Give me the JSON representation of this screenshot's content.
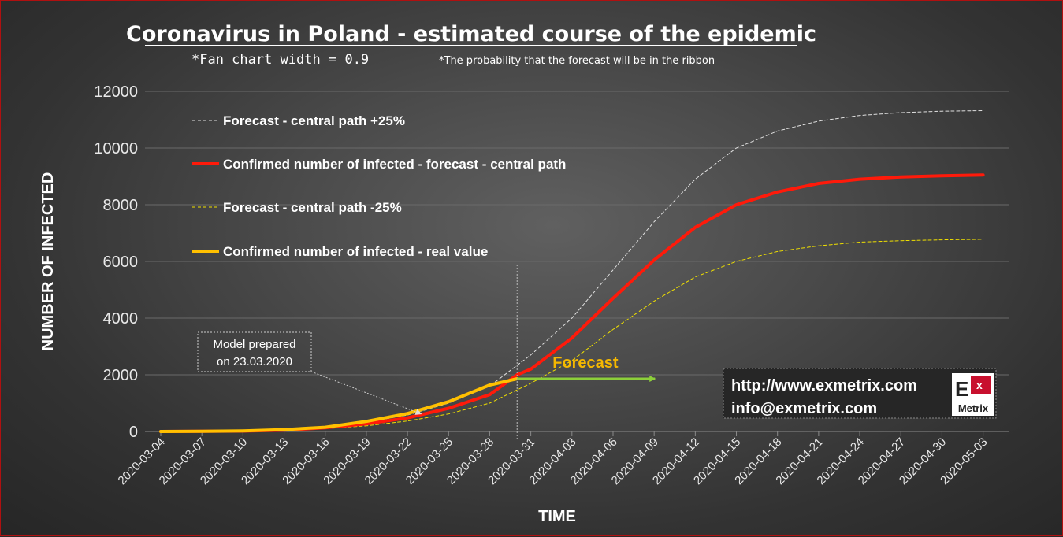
{
  "header": {
    "title": "Coronavirus  in Poland - estimated course of the epidemic",
    "fan_note": "*Fan chart width = 0.9",
    "prob_note": "*The probability that the forecast will be in the ribbon"
  },
  "annotations": {
    "model_line1": "Model prepared",
    "model_line2": "on 23.03.2020",
    "forecast": "Forecast",
    "url": "http://www.exmetrix.com",
    "email": "info@exmetrix.com",
    "logo_letter": "E",
    "logo_sup": "x",
    "logo_name": "Metrix"
  },
  "colors": {
    "plus25": "#e0e0e0",
    "central": "#ff1a0a",
    "minus25": "#f0e000",
    "real": "#ffc000",
    "arrow": "#8ccf3a",
    "logo_red": "#c8102e"
  },
  "chart_data": {
    "type": "line",
    "xlabel": "TIME",
    "ylabel": "NUMBER OF INFECTED",
    "ylim": [
      0,
      12000
    ],
    "yticks": [
      "0",
      "2000",
      "4000",
      "6000",
      "8000",
      "10000",
      "12000"
    ],
    "x_start": "2020-03-04",
    "x_end": "2020-05-04",
    "xticks": [
      "2020-03-04",
      "2020-03-07",
      "2020-03-10",
      "2020-03-13",
      "2020-03-16",
      "2020-03-19",
      "2020-03-22",
      "2020-03-25",
      "2020-03-28",
      "2020-03-31",
      "2020-04-03",
      "2020-04-06",
      "2020-04-09",
      "2020-04-12",
      "2020-04-15",
      "2020-04-18",
      "2020-04-21",
      "2020-04-24",
      "2020-04-27",
      "2020-04-30",
      "2020-05-03"
    ],
    "grid": true,
    "legend_position": "top-left",
    "forecast_start": "2020-03-30",
    "callout_target": "2020-03-23",
    "series": [
      {
        "name": "Forecast - central path +25%",
        "style": "dashed",
        "color_key": "plus25",
        "points": [
          [
            "2020-03-04",
            0
          ],
          [
            "2020-03-10",
            20
          ],
          [
            "2020-03-13",
            60
          ],
          [
            "2020-03-16",
            160
          ],
          [
            "2020-03-19",
            330
          ],
          [
            "2020-03-22",
            580
          ],
          [
            "2020-03-25",
            1000
          ],
          [
            "2020-03-28",
            1600
          ],
          [
            "2020-03-31",
            2700
          ],
          [
            "2020-04-03",
            4000
          ],
          [
            "2020-04-06",
            5700
          ],
          [
            "2020-04-09",
            7400
          ],
          [
            "2020-04-12",
            8900
          ],
          [
            "2020-04-15",
            10000
          ],
          [
            "2020-04-18",
            10600
          ],
          [
            "2020-04-21",
            10950
          ],
          [
            "2020-04-24",
            11150
          ],
          [
            "2020-04-27",
            11250
          ],
          [
            "2020-04-30",
            11300
          ],
          [
            "2020-05-03",
            11320
          ]
        ]
      },
      {
        "name": "Confirmed number of infected - forecast - central path",
        "style": "solid",
        "color_key": "central",
        "points": [
          [
            "2020-03-04",
            0
          ],
          [
            "2020-03-10",
            15
          ],
          [
            "2020-03-13",
            50
          ],
          [
            "2020-03-16",
            130
          ],
          [
            "2020-03-19",
            270
          ],
          [
            "2020-03-22",
            480
          ],
          [
            "2020-03-25",
            820
          ],
          [
            "2020-03-28",
            1300
          ],
          [
            "2020-03-30",
            2000
          ],
          [
            "2020-03-31",
            2200
          ],
          [
            "2020-04-03",
            3300
          ],
          [
            "2020-04-06",
            4700
          ],
          [
            "2020-04-09",
            6050
          ],
          [
            "2020-04-12",
            7200
          ],
          [
            "2020-04-15",
            8000
          ],
          [
            "2020-04-18",
            8450
          ],
          [
            "2020-04-21",
            8750
          ],
          [
            "2020-04-24",
            8900
          ],
          [
            "2020-04-27",
            8980
          ],
          [
            "2020-04-30",
            9020
          ],
          [
            "2020-05-03",
            9050
          ]
        ]
      },
      {
        "name": "Forecast - central path  -25%",
        "style": "dashed",
        "color_key": "minus25",
        "points": [
          [
            "2020-03-04",
            0
          ],
          [
            "2020-03-10",
            10
          ],
          [
            "2020-03-13",
            40
          ],
          [
            "2020-03-16",
            100
          ],
          [
            "2020-03-19",
            200
          ],
          [
            "2020-03-22",
            370
          ],
          [
            "2020-03-25",
            620
          ],
          [
            "2020-03-28",
            1000
          ],
          [
            "2020-03-31",
            1700
          ],
          [
            "2020-04-03",
            2500
          ],
          [
            "2020-04-06",
            3600
          ],
          [
            "2020-04-09",
            4600
          ],
          [
            "2020-04-12",
            5450
          ],
          [
            "2020-04-15",
            6000
          ],
          [
            "2020-04-18",
            6350
          ],
          [
            "2020-04-21",
            6550
          ],
          [
            "2020-04-24",
            6680
          ],
          [
            "2020-04-27",
            6730
          ],
          [
            "2020-04-30",
            6760
          ],
          [
            "2020-05-03",
            6780
          ]
        ]
      },
      {
        "name": "Confirmed number of infected - real value",
        "style": "solid",
        "color_key": "real",
        "points": [
          [
            "2020-03-04",
            1
          ],
          [
            "2020-03-07",
            5
          ],
          [
            "2020-03-10",
            22
          ],
          [
            "2020-03-13",
            68
          ],
          [
            "2020-03-16",
            150
          ],
          [
            "2020-03-19",
            355
          ],
          [
            "2020-03-22",
            634
          ],
          [
            "2020-03-25",
            1051
          ],
          [
            "2020-03-28",
            1638
          ],
          [
            "2020-03-30",
            1862
          ]
        ]
      }
    ]
  }
}
